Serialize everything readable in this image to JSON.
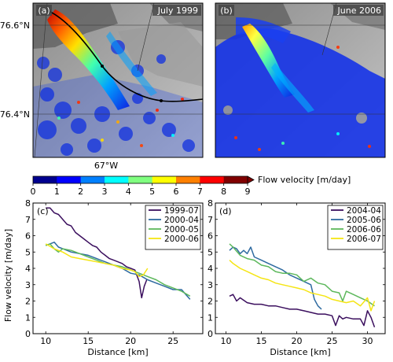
{
  "maps": {
    "latitude_labels": [
      "76.6°N",
      "76.4°N"
    ],
    "longitude_label": "67°W",
    "panels": [
      {
        "label": "(a)",
        "date": "July 1999"
      },
      {
        "label": "(b)",
        "date": "June 2006"
      }
    ]
  },
  "colorbar": {
    "ticks": [
      "0",
      "1",
      "2",
      "3",
      "4",
      "5",
      "6",
      "7",
      "8",
      "9"
    ],
    "label": "Flow velocity [m/day]",
    "colors": [
      "#00008f",
      "#0000ff",
      "#0080ff",
      "#00ffff",
      "#80ff80",
      "#ffff00",
      "#ff8000",
      "#ff0000",
      "#800000"
    ]
  },
  "chart_data": [
    {
      "type": "line",
      "panel_label": "(c)",
      "xlabel": "Distance [km]",
      "ylabel": "Flow velocity [m/day]",
      "xlim": [
        8.5,
        28.5
      ],
      "ylim": [
        0,
        8
      ],
      "xticks": [
        "10",
        "15",
        "20",
        "25"
      ],
      "yticks": [
        "0",
        "1",
        "2",
        "3",
        "4",
        "5",
        "6",
        "7",
        "8"
      ],
      "legend_position": "top-right",
      "series": [
        {
          "name": "1999-07",
          "color": "#3b0f5e",
          "x": [
            10,
            10.5,
            11,
            11.5,
            12,
            12.5,
            13,
            13.5,
            14,
            14.5,
            15,
            15.5,
            16,
            16.5,
            17,
            17.5,
            18,
            18.5,
            19,
            19.5,
            20,
            20.5,
            21,
            21.3,
            21.6,
            21.9
          ],
          "y": [
            7.7,
            7.7,
            7.4,
            7.3,
            7.0,
            6.7,
            6.6,
            6.2,
            6.0,
            5.8,
            5.6,
            5.4,
            5.3,
            5.0,
            4.8,
            4.6,
            4.5,
            4.4,
            4.3,
            4.1,
            4.0,
            3.9,
            3.2,
            2.2,
            2.9,
            3.3
          ]
        },
        {
          "name": "2000-04",
          "color": "#2e6aa0",
          "x": [
            10,
            10.5,
            11,
            11.5,
            12,
            13,
            14,
            15,
            16,
            17,
            18,
            19,
            20,
            21,
            22,
            23,
            24,
            25,
            26,
            26.5,
            27
          ],
          "y": [
            5.4,
            5.5,
            5.6,
            5.3,
            5.2,
            5.0,
            4.9,
            4.8,
            4.6,
            4.4,
            4.2,
            4.0,
            3.7,
            3.6,
            3.3,
            3.1,
            2.9,
            2.7,
            2.7,
            2.4,
            2.1
          ]
        },
        {
          "name": "2000-05",
          "color": "#5db85c",
          "x": [
            10,
            10.5,
            11,
            11.5,
            12,
            13,
            14,
            15,
            16,
            17,
            18,
            19,
            20,
            21,
            22,
            23,
            24,
            25,
            26,
            27
          ],
          "y": [
            5.4,
            5.5,
            5.2,
            5.0,
            5.2,
            5.1,
            4.9,
            4.7,
            4.5,
            4.3,
            4.2,
            4.1,
            3.9,
            3.7,
            3.5,
            3.3,
            3.0,
            2.8,
            2.6,
            2.3
          ]
        },
        {
          "name": "2000-06",
          "color": "#f5e514",
          "x": [
            10,
            11,
            12,
            13,
            14,
            15,
            16,
            17,
            18,
            19,
            20,
            20.5,
            21,
            21.5,
            22
          ],
          "y": [
            5.5,
            5.2,
            5.0,
            4.7,
            4.6,
            4.5,
            4.4,
            4.3,
            4.2,
            4.0,
            3.9,
            3.8,
            3.5,
            3.6,
            4.0
          ]
        }
      ]
    },
    {
      "type": "line",
      "panel_label": "(d)",
      "xlabel": "Distance [km]",
      "ylabel": "",
      "xlim": [
        8.5,
        32.5
      ],
      "ylim": [
        0,
        8
      ],
      "xticks": [
        "10",
        "15",
        "20",
        "25",
        "30"
      ],
      "yticks": [
        "0",
        "1",
        "2",
        "3",
        "4",
        "5",
        "6",
        "7",
        "8"
      ],
      "legend_position": "top-right",
      "series": [
        {
          "name": "2004-04",
          "color": "#3b0f5e",
          "x": [
            10.5,
            11,
            11.5,
            12,
            13,
            14,
            15,
            16,
            17,
            18,
            19,
            20,
            21,
            22,
            23,
            24,
            25,
            25.5,
            26,
            26.5,
            27,
            28,
            29,
            29.5,
            30,
            30.5,
            31
          ],
          "y": [
            2.3,
            2.4,
            2.0,
            2.2,
            1.9,
            1.8,
            1.8,
            1.7,
            1.7,
            1.6,
            1.5,
            1.5,
            1.4,
            1.3,
            1.2,
            1.2,
            1.1,
            0.5,
            1.1,
            0.9,
            1.0,
            0.9,
            0.9,
            0.5,
            1.4,
            1.0,
            0.4
          ]
        },
        {
          "name": "2005-06",
          "color": "#2e6aa0",
          "x": [
            10.5,
            11,
            11.5,
            12,
            12.5,
            13,
            13.5,
            14,
            15,
            16,
            17,
            18,
            19,
            20,
            21,
            22,
            22.5,
            23,
            23.5
          ],
          "y": [
            5.1,
            5.3,
            5.2,
            4.9,
            5.1,
            4.9,
            5.3,
            4.7,
            4.5,
            4.3,
            4.1,
            3.9,
            3.6,
            3.4,
            3.2,
            3.0,
            2.1,
            1.7,
            1.5
          ]
        },
        {
          "name": "2006-06",
          "color": "#5db85c",
          "x": [
            10.5,
            11,
            12,
            13,
            14,
            15,
            16,
            17,
            18,
            19,
            20,
            21,
            22,
            23,
            24,
            25,
            26,
            26.5,
            27,
            28,
            29,
            30,
            31
          ],
          "y": [
            5.5,
            5.3,
            4.8,
            4.6,
            4.5,
            4.2,
            4.1,
            3.8,
            3.7,
            3.7,
            3.6,
            3.2,
            3.4,
            3.1,
            3.0,
            2.6,
            2.5,
            2.0,
            2.6,
            2.4,
            2.2,
            2.0,
            1.7
          ]
        },
        {
          "name": "2006-07",
          "color": "#f5e514",
          "x": [
            10.5,
            11,
            12,
            13,
            14,
            15,
            16,
            17,
            18,
            19,
            20,
            21,
            22,
            23,
            24,
            25,
            26,
            27,
            28,
            29,
            30,
            30.5,
            31
          ],
          "y": [
            4.5,
            4.3,
            4.0,
            3.8,
            3.6,
            3.4,
            3.3,
            3.1,
            3.0,
            2.9,
            2.8,
            2.7,
            2.5,
            2.4,
            2.3,
            2.1,
            2.0,
            1.9,
            2.0,
            1.7,
            2.2,
            1.4,
            2.0
          ]
        }
      ]
    }
  ]
}
